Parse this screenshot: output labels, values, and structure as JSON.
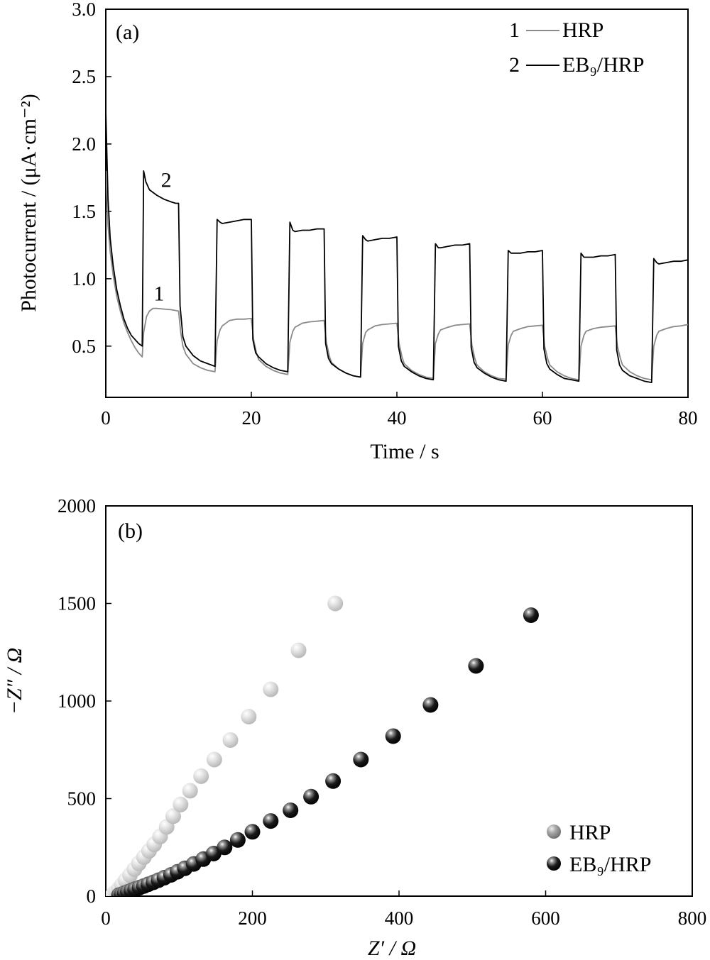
{
  "chart_data": [
    {
      "panel": "(a)",
      "type": "line",
      "xlabel": "Time / s",
      "ylabel": "Photocurrent / (μA·cm⁻²)",
      "xlim": [
        0,
        80
      ],
      "ylim": [
        0.12,
        3.0
      ],
      "xticks": [
        0,
        20,
        40,
        60,
        80
      ],
      "yticks": [
        0.5,
        1.0,
        1.5,
        2.0,
        2.5,
        3.0
      ],
      "ytick_labels": [
        "0.5",
        "1.0",
        "1.5",
        "2.0",
        "2.5",
        "3.0"
      ],
      "legend": {
        "placement": "top-right",
        "entries": [
          {
            "num": "1",
            "label": "HRP"
          },
          {
            "num": "2",
            "label": "EB₉/HRP"
          }
        ]
      },
      "annotations": [
        {
          "text": "1",
          "x": 7.3,
          "y": 0.84
        },
        {
          "text": "2",
          "x": 8.3,
          "y": 1.68
        }
      ],
      "series": [
        {
          "name": "HRP",
          "curve_label": "1",
          "color": "#8a8a8a",
          "x": [
            0,
            0.3,
            0.6,
            1,
            1.5,
            2,
            2.5,
            3,
            3.5,
            4,
            4.5,
            5,
            5,
            5.2,
            5.6,
            6,
            6.5,
            7,
            8,
            9,
            10,
            10,
            10.3,
            10.6,
            11,
            12,
            13,
            14,
            15,
            15,
            15.3,
            15.7,
            16,
            17,
            18,
            19,
            20,
            20,
            20.3,
            20.7,
            21,
            22,
            23,
            24,
            25,
            25,
            25.3,
            25.7,
            26,
            27,
            28,
            29,
            30,
            30,
            30.3,
            30.7,
            31,
            32,
            33,
            34,
            35,
            35,
            35.3,
            35.7,
            36,
            37,
            38,
            39,
            40,
            40,
            40.3,
            40.7,
            41,
            42,
            43,
            44,
            45,
            45,
            45.3,
            45.7,
            46,
            47,
            48,
            49,
            50,
            50,
            50.3,
            50.7,
            51,
            52,
            53,
            54,
            55,
            55,
            55.3,
            55.7,
            56,
            57,
            58,
            59,
            60,
            60,
            60.3,
            60.7,
            61,
            62,
            63,
            64,
            65,
            65,
            65.3,
            65.7,
            66,
            67,
            68,
            69,
            70,
            70,
            70.3,
            70.7,
            71,
            72,
            73,
            74,
            75,
            75,
            75.3,
            75.7,
            76,
            77,
            78,
            79,
            80
          ],
          "y": [
            1.8,
            1.4,
            1.2,
            1.03,
            0.87,
            0.76,
            0.67,
            0.6,
            0.54,
            0.49,
            0.45,
            0.42,
            0.42,
            0.6,
            0.72,
            0.76,
            0.78,
            0.78,
            0.775,
            0.77,
            0.76,
            0.76,
            0.6,
            0.5,
            0.44,
            0.37,
            0.34,
            0.32,
            0.31,
            0.31,
            0.54,
            0.62,
            0.65,
            0.69,
            0.7,
            0.7,
            0.705,
            0.705,
            0.55,
            0.45,
            0.4,
            0.35,
            0.32,
            0.3,
            0.29,
            0.29,
            0.53,
            0.61,
            0.64,
            0.67,
            0.68,
            0.685,
            0.69,
            0.69,
            0.53,
            0.43,
            0.38,
            0.33,
            0.3,
            0.28,
            0.27,
            0.27,
            0.52,
            0.6,
            0.62,
            0.65,
            0.66,
            0.665,
            0.67,
            0.67,
            0.52,
            0.42,
            0.37,
            0.32,
            0.29,
            0.27,
            0.26,
            0.26,
            0.52,
            0.59,
            0.62,
            0.64,
            0.655,
            0.66,
            0.665,
            0.665,
            0.51,
            0.41,
            0.36,
            0.31,
            0.28,
            0.26,
            0.255,
            0.255,
            0.51,
            0.58,
            0.61,
            0.63,
            0.645,
            0.65,
            0.655,
            0.655,
            0.5,
            0.41,
            0.36,
            0.31,
            0.28,
            0.26,
            0.25,
            0.25,
            0.5,
            0.58,
            0.61,
            0.63,
            0.64,
            0.645,
            0.65,
            0.65,
            0.5,
            0.41,
            0.36,
            0.31,
            0.28,
            0.26,
            0.25,
            0.25,
            0.5,
            0.58,
            0.61,
            0.63,
            0.645,
            0.65,
            0.66
          ]
        },
        {
          "name": "EB₉/HRP",
          "curve_label": "2",
          "color": "#000000",
          "x": [
            0,
            0.3,
            0.6,
            1,
            1.5,
            2,
            2.5,
            3,
            3.5,
            4,
            4.5,
            5,
            5,
            5.2,
            5.5,
            6,
            7,
            8,
            9,
            9.6,
            10,
            10,
            10.2,
            10.6,
            11,
            12,
            13,
            14,
            15,
            15,
            15.3,
            15.7,
            16,
            17,
            18,
            19,
            20,
            20,
            20.2,
            20.6,
            21,
            22,
            23,
            24,
            25,
            25,
            25.3,
            25.7,
            26,
            27,
            28,
            29,
            30,
            30,
            30.2,
            30.6,
            31,
            32,
            33,
            34,
            35,
            35,
            35.3,
            35.7,
            36,
            37,
            38,
            39,
            40,
            40,
            40.2,
            40.6,
            41,
            42,
            43,
            44,
            45,
            45,
            45.3,
            45.7,
            46,
            47,
            48,
            49,
            50,
            50,
            50.2,
            50.6,
            51,
            52,
            53,
            54,
            55,
            55,
            55.3,
            55.7,
            56,
            57,
            58,
            59,
            60,
            60,
            60.2,
            60.6,
            61,
            62,
            63,
            64,
            65,
            65,
            65.3,
            65.7,
            66,
            67,
            68,
            69,
            70,
            70,
            70.2,
            70.6,
            71,
            72,
            73,
            74,
            75,
            75,
            75.3,
            75.7,
            76,
            77,
            78,
            79,
            80
          ],
          "y": [
            2.25,
            1.6,
            1.3,
            1.1,
            0.92,
            0.8,
            0.7,
            0.63,
            0.58,
            0.55,
            0.52,
            0.5,
            0.5,
            1.8,
            1.72,
            1.66,
            1.62,
            1.59,
            1.57,
            1.56,
            1.56,
            1.56,
            0.8,
            0.57,
            0.5,
            0.43,
            0.39,
            0.37,
            0.35,
            0.35,
            1.44,
            1.42,
            1.41,
            1.42,
            1.43,
            1.44,
            1.44,
            1.44,
            0.55,
            0.45,
            0.42,
            0.37,
            0.34,
            0.32,
            0.31,
            0.31,
            1.42,
            1.36,
            1.35,
            1.36,
            1.36,
            1.37,
            1.37,
            1.37,
            0.52,
            0.41,
            0.37,
            0.33,
            0.3,
            0.28,
            0.27,
            0.27,
            1.32,
            1.29,
            1.28,
            1.29,
            1.3,
            1.3,
            1.31,
            1.31,
            0.5,
            0.39,
            0.35,
            0.31,
            0.28,
            0.26,
            0.25,
            0.25,
            1.26,
            1.23,
            1.23,
            1.24,
            1.25,
            1.25,
            1.26,
            1.26,
            0.49,
            0.38,
            0.34,
            0.3,
            0.27,
            0.25,
            0.24,
            0.24,
            1.21,
            1.19,
            1.19,
            1.19,
            1.2,
            1.2,
            1.21,
            1.21,
            0.48,
            0.37,
            0.33,
            0.29,
            0.26,
            0.25,
            0.24,
            0.24,
            1.19,
            1.16,
            1.16,
            1.16,
            1.17,
            1.17,
            1.18,
            1.18,
            0.47,
            0.36,
            0.32,
            0.28,
            0.26,
            0.24,
            0.23,
            0.23,
            1.15,
            1.12,
            1.11,
            1.12,
            1.13,
            1.13,
            1.14
          ]
        }
      ]
    },
    {
      "panel": "(b)",
      "type": "scatter",
      "xlabel": "Z′ / Ω",
      "ylabel": "−Z″ / Ω",
      "xlim": [
        0,
        800
      ],
      "ylim": [
        0,
        2000
      ],
      "xticks": [
        0,
        200,
        400,
        600,
        800
      ],
      "yticks": [
        0,
        500,
        1000,
        1500,
        2000
      ],
      "legend": {
        "placement": "bottom-right",
        "entries": [
          {
            "label": "HRP"
          },
          {
            "label": "EB₉/HRP"
          }
        ]
      },
      "series": [
        {
          "name": "HRP",
          "color": "#c8c8c8",
          "x": [
            10,
            14,
            18,
            22,
            27,
            33,
            39,
            45,
            52,
            59,
            66,
            74,
            83,
            92,
            102,
            115,
            130,
            148,
            170,
            195,
            225,
            263,
            313
          ],
          "y": [
            10,
            22,
            38,
            58,
            82,
            108,
            138,
            168,
            200,
            232,
            265,
            305,
            355,
            410,
            470,
            540,
            615,
            700,
            800,
            920,
            1060,
            1260,
            1500
          ]
        },
        {
          "name": "EB₉/HRP",
          "color": "#1a1a1a",
          "x": [
            18,
            22,
            26,
            30,
            35,
            40,
            46,
            52,
            58,
            65,
            72,
            80,
            89,
            98,
            108,
            120,
            133,
            147,
            162,
            180,
            200,
            225,
            252,
            280,
            310,
            348,
            392,
            443,
            505,
            580
          ],
          "y": [
            5,
            10,
            16,
            22,
            29,
            36,
            44,
            52,
            61,
            71,
            82,
            95,
            109,
            125,
            143,
            165,
            190,
            218,
            250,
            288,
            330,
            385,
            440,
            510,
            590,
            700,
            820,
            980,
            1180,
            1440
          ]
        }
      ]
    }
  ]
}
